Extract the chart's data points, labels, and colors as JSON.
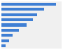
{
  "values": [
    95,
    74,
    62,
    55,
    44,
    30,
    20,
    13,
    7
  ],
  "bar_color": "#3f7fd4",
  "background_color": "#f0f0f0",
  "plot_bg_color": "#f0f0f0",
  "n_bars": 9,
  "xlim": [
    0,
    105
  ],
  "bar_height": 0.55
}
